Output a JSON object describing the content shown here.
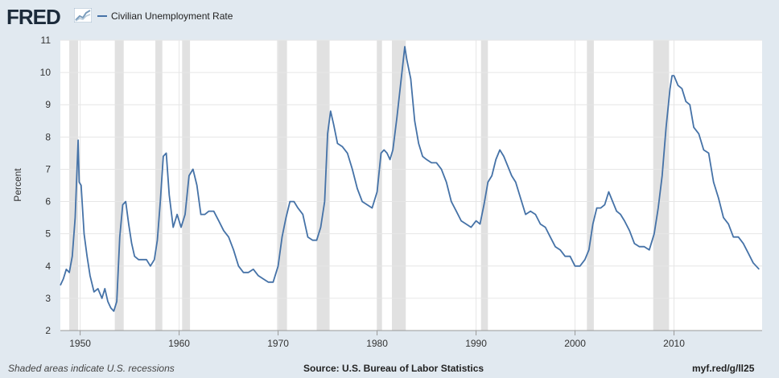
{
  "header": {
    "logo_text": "FRED",
    "logo_icon": "trend-chart-icon",
    "legend_label": "Civilian Unemployment Rate"
  },
  "footer": {
    "note": "Shaded areas indicate U.S. recessions",
    "source": "Source: U.S. Bureau of Labor Statistics",
    "shortlink": "myf.red/g/ll25"
  },
  "colors": {
    "series": "#4572a7",
    "recession": "#e1e1e1",
    "background": "#e1e9f0",
    "plot_bg": "#ffffff",
    "grid": "#e6e6e6"
  },
  "chart_data": {
    "type": "line",
    "title": "",
    "xlabel": "",
    "ylabel": "Percent",
    "xlim": [
      1948.0,
      2018.9
    ],
    "ylim": [
      2,
      11
    ],
    "y_ticks": [
      2,
      3,
      4,
      5,
      6,
      7,
      8,
      9,
      10,
      11
    ],
    "x_ticks": [
      1950,
      1960,
      1970,
      1980,
      1990,
      2000,
      2010
    ],
    "grid": true,
    "legend_position": "top-left",
    "recessions": [
      [
        1948.9,
        1949.8
      ],
      [
        1953.5,
        1954.4
      ],
      [
        1957.6,
        1958.3
      ],
      [
        1960.3,
        1961.1
      ],
      [
        1969.9,
        1970.9
      ],
      [
        1973.9,
        1975.2
      ],
      [
        1980.0,
        1980.5
      ],
      [
        1981.5,
        1982.9
      ],
      [
        1990.5,
        1991.2
      ],
      [
        2001.2,
        2001.9
      ],
      [
        2007.9,
        2009.5
      ]
    ],
    "series": [
      {
        "name": "Civilian Unemployment Rate",
        "x": [
          1948.0,
          1948.3,
          1948.6,
          1948.9,
          1949.2,
          1949.5,
          1949.8,
          1949.9,
          1950.1,
          1950.4,
          1950.7,
          1951.0,
          1951.4,
          1951.8,
          1952.2,
          1952.5,
          1952.8,
          1953.1,
          1953.4,
          1953.7,
          1954.0,
          1954.3,
          1954.6,
          1954.9,
          1955.2,
          1955.5,
          1955.9,
          1956.3,
          1956.7,
          1957.1,
          1957.5,
          1957.8,
          1958.1,
          1958.4,
          1958.7,
          1959.0,
          1959.4,
          1959.8,
          1960.2,
          1960.6,
          1961.0,
          1961.4,
          1961.8,
          1962.2,
          1962.6,
          1963.0,
          1963.5,
          1964.0,
          1964.5,
          1965.0,
          1965.5,
          1966.0,
          1966.5,
          1967.0,
          1967.5,
          1968.0,
          1968.5,
          1969.0,
          1969.5,
          1970.0,
          1970.4,
          1970.8,
          1971.2,
          1971.6,
          1972.0,
          1972.5,
          1973.0,
          1973.5,
          1973.9,
          1974.3,
          1974.7,
          1975.0,
          1975.3,
          1975.6,
          1976.0,
          1976.5,
          1977.0,
          1977.5,
          1978.0,
          1978.5,
          1979.0,
          1979.5,
          1980.0,
          1980.4,
          1980.7,
          1981.0,
          1981.3,
          1981.6,
          1982.0,
          1982.4,
          1982.8,
          1983.0,
          1983.4,
          1983.8,
          1984.2,
          1984.6,
          1985.0,
          1985.5,
          1986.0,
          1986.5,
          1987.0,
          1987.5,
          1988.0,
          1988.5,
          1989.0,
          1989.5,
          1990.0,
          1990.4,
          1990.8,
          1991.2,
          1991.6,
          1992.0,
          1992.4,
          1992.8,
          1993.2,
          1993.6,
          1994.0,
          1994.5,
          1995.0,
          1995.5,
          1996.0,
          1996.5,
          1997.0,
          1997.5,
          1998.0,
          1998.5,
          1999.0,
          1999.5,
          2000.0,
          2000.5,
          2001.0,
          2001.4,
          2001.8,
          2002.2,
          2002.6,
          2003.0,
          2003.4,
          2003.8,
          2004.2,
          2004.6,
          2005.0,
          2005.5,
          2006.0,
          2006.5,
          2007.0,
          2007.5,
          2008.0,
          2008.4,
          2008.8,
          2009.2,
          2009.6,
          2009.8,
          2010.0,
          2010.4,
          2010.8,
          2011.2,
          2011.6,
          2012.0,
          2012.5,
          2013.0,
          2013.5,
          2014.0,
          2014.5,
          2015.0,
          2015.5,
          2016.0,
          2016.5,
          2017.0,
          2017.5,
          2018.0,
          2018.3,
          2018.6
        ],
        "values": [
          3.4,
          3.6,
          3.9,
          3.8,
          4.3,
          5.5,
          7.9,
          6.6,
          6.5,
          5.0,
          4.3,
          3.7,
          3.2,
          3.3,
          3.0,
          3.3,
          2.9,
          2.7,
          2.6,
          2.9,
          4.9,
          5.9,
          6.0,
          5.3,
          4.7,
          4.3,
          4.2,
          4.2,
          4.2,
          4.0,
          4.2,
          4.8,
          6.0,
          7.4,
          7.5,
          6.2,
          5.2,
          5.6,
          5.2,
          5.6,
          6.8,
          7.0,
          6.5,
          5.6,
          5.6,
          5.7,
          5.7,
          5.4,
          5.1,
          4.9,
          4.5,
          4.0,
          3.8,
          3.8,
          3.9,
          3.7,
          3.6,
          3.5,
          3.5,
          4.0,
          4.9,
          5.5,
          6.0,
          6.0,
          5.8,
          5.6,
          4.9,
          4.8,
          4.8,
          5.2,
          6.0,
          8.1,
          8.8,
          8.4,
          7.8,
          7.7,
          7.5,
          7.0,
          6.4,
          6.0,
          5.9,
          5.8,
          6.3,
          7.5,
          7.6,
          7.5,
          7.3,
          7.6,
          8.6,
          9.7,
          10.8,
          10.4,
          9.8,
          8.5,
          7.8,
          7.4,
          7.3,
          7.2,
          7.2,
          7.0,
          6.6,
          6.0,
          5.7,
          5.4,
          5.3,
          5.2,
          5.4,
          5.3,
          5.9,
          6.6,
          6.8,
          7.3,
          7.6,
          7.4,
          7.1,
          6.8,
          6.6,
          6.1,
          5.6,
          5.7,
          5.6,
          5.3,
          5.2,
          4.9,
          4.6,
          4.5,
          4.3,
          4.3,
          4.0,
          4.0,
          4.2,
          4.5,
          5.3,
          5.8,
          5.8,
          5.9,
          6.3,
          6.0,
          5.7,
          5.6,
          5.4,
          5.1,
          4.7,
          4.6,
          4.6,
          4.5,
          5.0,
          5.8,
          6.8,
          8.3,
          9.5,
          9.9,
          9.9,
          9.6,
          9.5,
          9.1,
          9.0,
          8.3,
          8.1,
          7.6,
          7.5,
          6.6,
          6.1,
          5.5,
          5.3,
          4.9,
          4.9,
          4.7,
          4.4,
          4.1,
          4.0,
          3.9
        ]
      }
    ]
  }
}
